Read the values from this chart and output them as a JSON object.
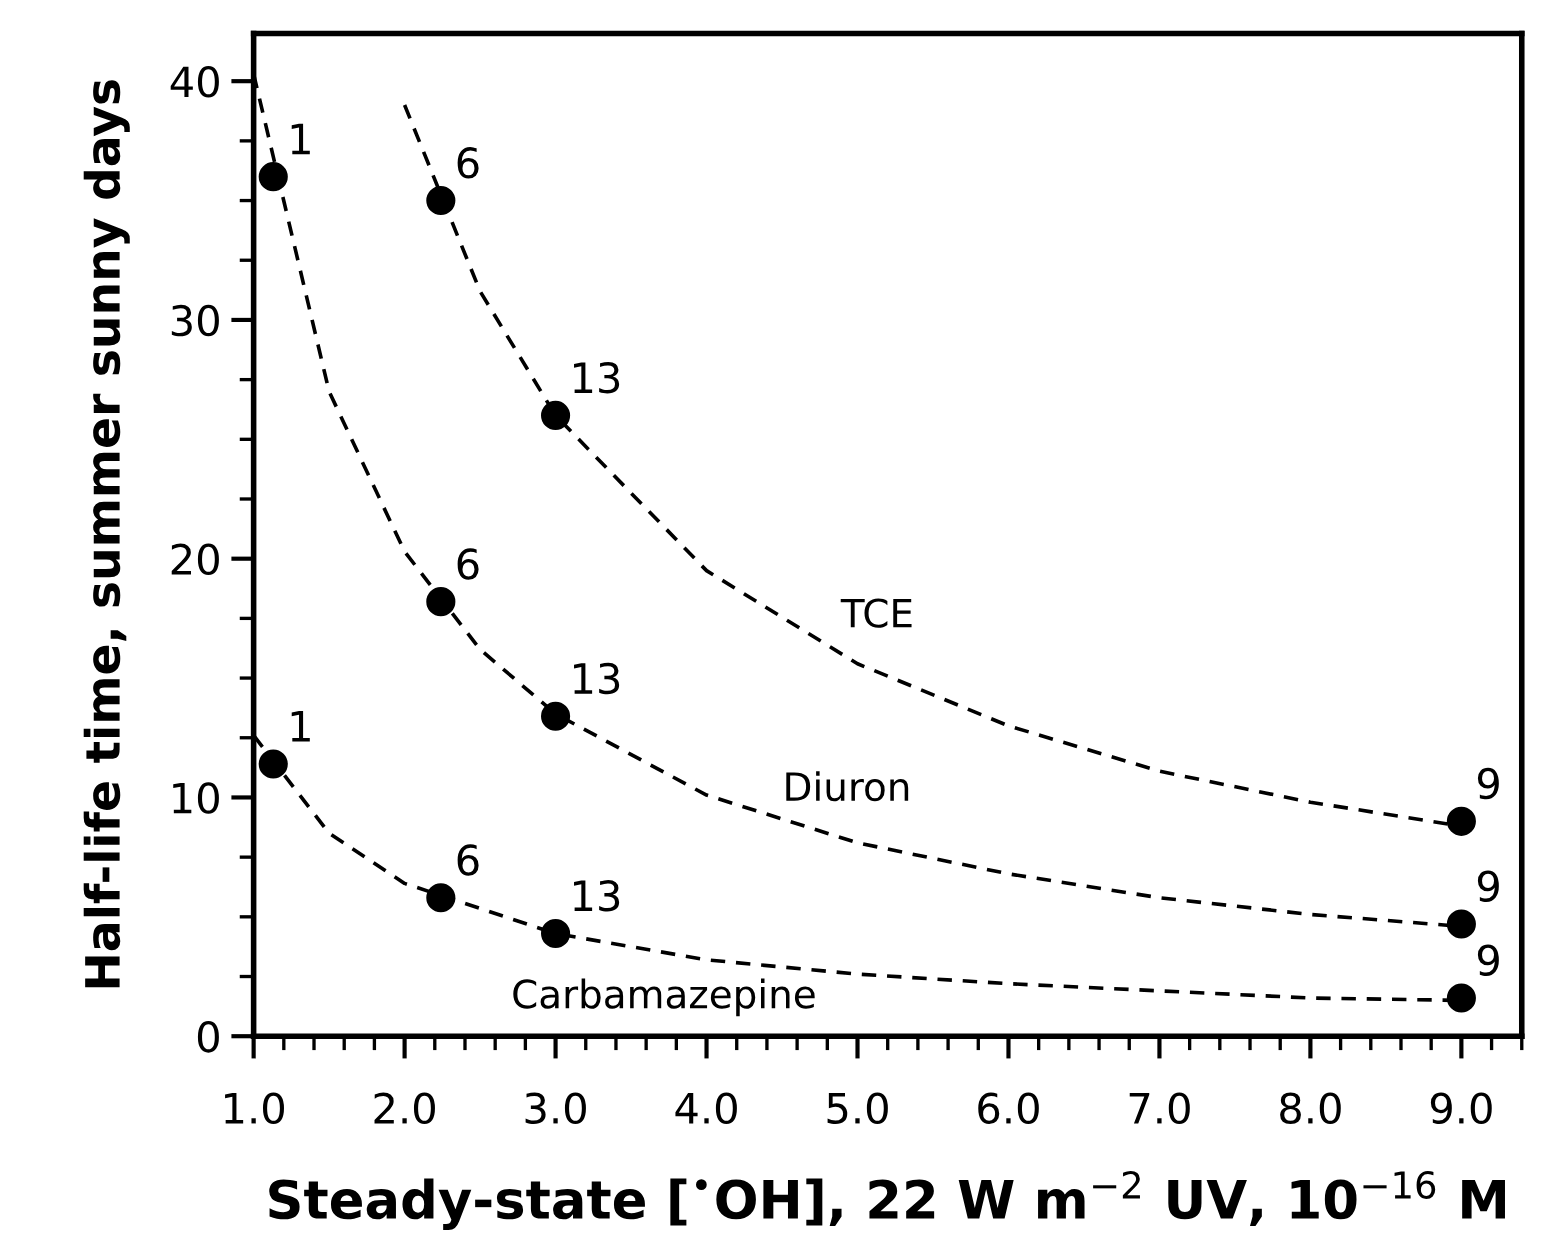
{
  "chart_data": {
    "type": "scatter",
    "xlabel": "Steady-state [$^{•}$OH], 22 W m$^{−2}$ UV, 10$^{−16}$ M",
    "ylabel": "Half-life time, summer sunny days",
    "xlim": [
      1.0,
      9.4
    ],
    "ylim": [
      0,
      42
    ],
    "xticks": [
      {
        "value": 1,
        "label": "1.0"
      },
      {
        "value": 2,
        "label": "2.0"
      },
      {
        "value": 3,
        "label": "3.0"
      },
      {
        "value": 4,
        "label": "4.0"
      },
      {
        "value": 5,
        "label": "5.0"
      },
      {
        "value": 6,
        "label": "6.0"
      },
      {
        "value": 7,
        "label": "7.0"
      },
      {
        "value": 8,
        "label": "8.0"
      },
      {
        "value": 9,
        "label": "9.0"
      }
    ],
    "yticks": [
      0,
      10,
      20,
      30,
      40
    ],
    "grid": false,
    "legend": false,
    "marker": "circle",
    "series": [
      {
        "type": "line",
        "name": "TCE",
        "marker": "none",
        "color": "#000000",
        "line_style": "dashed",
        "x": [
          2.0,
          2.5,
          3,
          4,
          5,
          6,
          7,
          8,
          9
        ],
        "values": [
          39,
          31.2,
          26,
          19.5,
          15.6,
          13,
          11.1,
          9.8,
          8.8
        ]
      },
      {
        "type": "line",
        "name": "Diuron",
        "marker": "none",
        "color": "#000000",
        "line_style": "dashed",
        "x": [
          1.0,
          1.5,
          2,
          2.5,
          3,
          4,
          5,
          6,
          7,
          8,
          9
        ],
        "values": [
          40.3,
          27,
          20.3,
          16.2,
          13.5,
          10.1,
          8.1,
          6.8,
          5.8,
          5.1,
          4.6
        ]
      },
      {
        "type": "line",
        "name": "Carbamazepine",
        "marker": "none",
        "color": "#000000",
        "line_style": "dashed",
        "x": [
          1.0,
          1.5,
          2,
          3,
          4,
          5,
          6,
          7,
          8,
          9
        ],
        "values": [
          12.6,
          8.5,
          6.4,
          4.3,
          3.2,
          2.6,
          2.2,
          1.9,
          1.6,
          1.5
        ]
      },
      {
        "color": "#000000",
        "x": [
          2.24,
          3.0,
          9.0
        ],
        "values": [
          35,
          26.0,
          9.0
        ]
      },
      {
        "color": "#000000",
        "x": [
          1.13,
          2.24,
          3.0,
          9.0
        ],
        "values": [
          36,
          18.2,
          13.4,
          4.7
        ]
      },
      {
        "color": "#000000",
        "x": [
          1.13,
          2.24,
          3.0,
          9.0
        ],
        "values": [
          11.4,
          5.8,
          4.3,
          1.6
        ]
      }
    ],
    "annotations": [
      {
        "text": "6",
        "x": 2.24,
        "y": 35
      },
      {
        "text": "13",
        "x": 3.0,
        "y": 26.0
      },
      {
        "text": "9",
        "x": 9.0,
        "y": 9.0
      },
      {
        "text": "1",
        "x": 1.13,
        "y": 36
      },
      {
        "text": "6",
        "x": 2.24,
        "y": 18.2
      },
      {
        "text": "13",
        "x": 3.0,
        "y": 13.4
      },
      {
        "text": "9",
        "x": 9.0,
        "y": 4.7
      },
      {
        "text": "1",
        "x": 1.13,
        "y": 11.4
      },
      {
        "text": "6",
        "x": 2.24,
        "y": 5.8
      },
      {
        "text": "13",
        "x": 3.0,
        "y": 4.3
      },
      {
        "text": "9",
        "x": 9.0,
        "y": 1.6
      }
    ]
  }
}
